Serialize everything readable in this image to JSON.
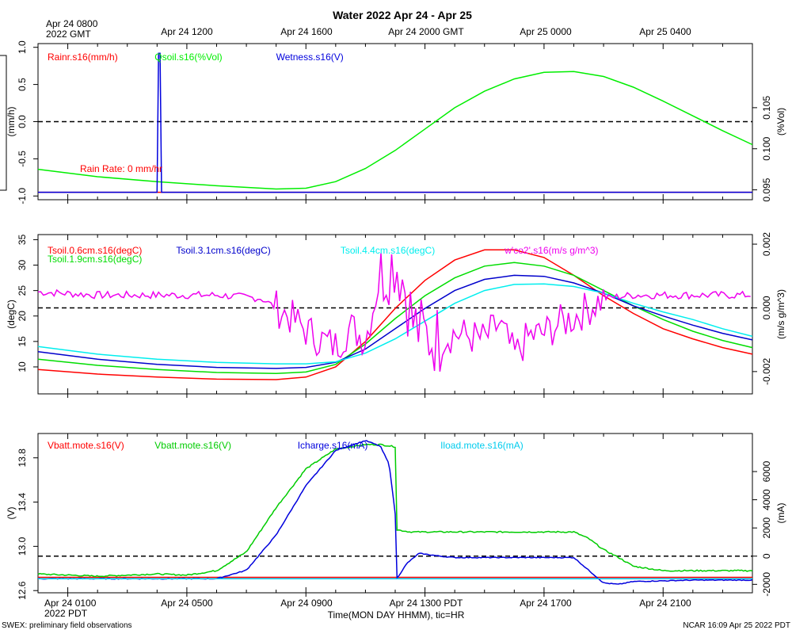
{
  "figure": {
    "title": "Water 2022 Apr 24 - Apr 25",
    "top_ticks": [
      "Apr 24 0800\n2022 GMT",
      "Apr 24 1200",
      "Apr 24 1600",
      "Apr 24 2000 GMT",
      "Apr 25 0000",
      "Apr 25 0400"
    ],
    "bottom_ticks": [
      "Apr 24 0100\n2022 PDT",
      "Apr 24 0500",
      "Apr 24 0900",
      "Apr 24 1300 PDT",
      "Apr 24 1700",
      "Apr 24 2100"
    ],
    "xlabel": "Time(MON DAY HHMM), tic=HR",
    "footer_left": "SWEX: preliminary field observations",
    "footer_right": "NCAR 16:09 Apr 25 2022 PDT"
  },
  "chart_data": [
    {
      "type": "line",
      "panel": "rain-soil-moisture-wetness",
      "x_unit": "hours since Apr 24 0000 PDT",
      "xlim": [
        0,
        24
      ],
      "left_axis": {
        "label": "(mm/h)",
        "ylim": [
          -1.05,
          1.05
        ],
        "ticks": [
          1.0,
          0.5,
          0.0,
          -0.5,
          -1.0
        ],
        "tick_labels": [
          "1.0",
          "0.5",
          "0.0",
          "-0.5",
          "-1.0"
        ]
      },
      "right_axis": {
        "label": "(%Vol)",
        "ylim": [
          0.0938,
          0.1128
        ],
        "ticks": [
          0.105,
          0.1,
          0.095
        ],
        "tick_labels": [
          "0.105",
          "0.100",
          "0.095"
        ]
      },
      "reference_line": {
        "axis": "left",
        "y": 0.0
      },
      "annotation": "Rain Rate: 0 mm/hr",
      "series": [
        {
          "name": "Rainr.s16(mm/h)",
          "axis": "left",
          "color": "#ff0000",
          "x": [
            0,
            24
          ],
          "y": [
            -0.95,
            -0.95
          ]
        },
        {
          "name": "Qsoil.s16(%Vol)",
          "axis": "right",
          "color": "#00ee00",
          "x": [
            0,
            2,
            4,
            6,
            8,
            9,
            10,
            11,
            12,
            13,
            14,
            15,
            16,
            17,
            18,
            19,
            20,
            21,
            22,
            23,
            24
          ],
          "y": [
            0.0975,
            0.0966,
            0.096,
            0.0955,
            0.0951,
            0.0952,
            0.096,
            0.0976,
            0.0998,
            0.1024,
            0.105,
            0.107,
            0.1085,
            0.1093,
            0.1094,
            0.1088,
            0.1075,
            0.1058,
            0.104,
            0.1022,
            0.1005
          ]
        },
        {
          "name": "Wetness.s16(V)",
          "axis": "left",
          "color": "#0000dd",
          "x": [
            0,
            4.0,
            4.05,
            4.1,
            4.15,
            24
          ],
          "y": [
            -0.95,
            -0.95,
            0.92,
            0.92,
            -0.95,
            -0.95
          ]
        }
      ]
    },
    {
      "type": "line",
      "panel": "soil-temperature-co2-flux",
      "x_unit": "hours since Apr 24 0000 PDT",
      "xlim": [
        0,
        24
      ],
      "left_axis": {
        "label": "(degC)",
        "ylim": [
          4.7,
          36
        ],
        "ticks": [
          35,
          30,
          25,
          20,
          15,
          10
        ],
        "tick_labels": [
          "35",
          "30",
          "25",
          "20",
          "15",
          "10"
        ]
      },
      "right_axis": {
        "label": "(m/s g/m^3)",
        "ylim": [
          -0.0027,
          0.0023
        ],
        "ticks": [
          0.002,
          0.0,
          -0.002
        ],
        "tick_labels": [
          "0.002",
          "0.000",
          "-0.002"
        ]
      },
      "reference_line": {
        "axis": "right",
        "y": 0.0
      },
      "series": [
        {
          "name": "Tsoil.0.6cm.s16(degC)",
          "axis": "left",
          "color": "#ff0000",
          "x": [
            0,
            2,
            4,
            6,
            8,
            9,
            10,
            11,
            12,
            13,
            14,
            15,
            16,
            17,
            18,
            19,
            20,
            21,
            22,
            23,
            24
          ],
          "y": [
            9.5,
            8.6,
            8.0,
            7.6,
            7.5,
            8.0,
            10.0,
            15.0,
            21.5,
            27.0,
            31.0,
            33.0,
            33.0,
            31.5,
            28.0,
            24.0,
            20.5,
            17.5,
            15.5,
            13.8,
            12.5
          ]
        },
        {
          "name": "Tsoil.1.9cm.s16(degC)",
          "axis": "left",
          "color": "#00dd00",
          "x": [
            0,
            2,
            4,
            6,
            8,
            9,
            10,
            11,
            12,
            13,
            14,
            15,
            16,
            17,
            18,
            19,
            20,
            21,
            22,
            23,
            24
          ],
          "y": [
            11.5,
            10.3,
            9.5,
            8.9,
            8.7,
            9.0,
            10.5,
            14.5,
            19.5,
            24.0,
            27.5,
            29.8,
            30.5,
            29.8,
            28.0,
            25.0,
            22.0,
            19.3,
            17.0,
            15.2,
            13.8
          ]
        },
        {
          "name": "Tsoil.3.1cm.s16(degC)",
          "axis": "left",
          "color": "#0000cc",
          "x": [
            0,
            2,
            4,
            6,
            8,
            9,
            10,
            11,
            12,
            13,
            14,
            15,
            16,
            17,
            18,
            19,
            20,
            21,
            22,
            23,
            24
          ],
          "y": [
            13.0,
            11.5,
            10.5,
            9.9,
            9.7,
            9.9,
            10.9,
            13.5,
            17.5,
            21.5,
            25.0,
            27.2,
            28.0,
            27.8,
            26.5,
            24.5,
            22.0,
            20.0,
            18.2,
            16.6,
            15.3
          ]
        },
        {
          "name": "Tsoil.4.4cm.s16(degC)",
          "axis": "left",
          "color": "#00eeee",
          "x": [
            0,
            2,
            4,
            6,
            8,
            9,
            10,
            11,
            12,
            13,
            14,
            15,
            16,
            17,
            18,
            19,
            20,
            21,
            22,
            23,
            24
          ],
          "y": [
            14.0,
            12.5,
            11.5,
            10.9,
            10.6,
            10.6,
            11.0,
            12.7,
            15.5,
            19.0,
            22.5,
            25.0,
            26.2,
            26.3,
            25.8,
            24.5,
            22.5,
            20.8,
            19.3,
            17.5,
            16.0
          ]
        },
        {
          "name": "w'co2'.s16(m/s g/m^3)",
          "axis": "right",
          "color": "#ee00ee",
          "noise": true,
          "x": [
            0,
            2,
            4,
            6,
            7.5,
            8.5,
            9,
            9.5,
            10,
            10.5,
            11,
            11.5,
            12,
            12.3,
            12.6,
            13,
            13.5,
            14,
            14.5,
            15,
            15.5,
            16,
            16.5,
            17,
            17.5,
            18,
            18.5,
            19,
            20,
            22,
            24
          ],
          "y": [
            0.0005,
            0.0004,
            0.0004,
            0.0004,
            0.0003,
            -0.0003,
            -0.0007,
            -0.001,
            -0.0012,
            -0.0006,
            -0.001,
            0.001,
            0.0015,
            0.0008,
            -0.0005,
            -0.0009,
            -0.001,
            -0.0008,
            -0.0009,
            -0.001,
            -0.0005,
            -0.0015,
            -0.0009,
            -0.0008,
            -0.0005,
            -0.0003,
            0.0,
            0.0003,
            0.0004,
            0.0004,
            0.0004
          ]
        }
      ]
    },
    {
      "type": "line",
      "panel": "battery-voltage-current",
      "x_unit": "hours since Apr 24 0000 PDT",
      "xlim": [
        0,
        24
      ],
      "left_axis": {
        "label": "(V)",
        "ylim": [
          12.58,
          14.02
        ],
        "ticks": [
          13.8,
          13.4,
          13.0,
          12.6
        ],
        "tick_labels": [
          "13.8",
          "13.4",
          "13.0",
          "12.6"
        ]
      },
      "right_axis": {
        "label": "(mA)",
        "ylim": [
          -2600,
          8700
        ],
        "ticks": [
          6000,
          4000,
          2000,
          0,
          -2000
        ],
        "tick_labels": [
          "6000",
          "4000",
          "2000",
          "0",
          "-2000"
        ]
      },
      "reference_line": {
        "axis": "right",
        "y": 0
      },
      "series": [
        {
          "name": "Vbatt.mote.s16(V)",
          "axis": "left",
          "color": "#ff0000",
          "x": [
            0,
            24
          ],
          "y": [
            12.72,
            12.72
          ]
        },
        {
          "name": "Vbatt.mote.s16(V)",
          "axis": "left",
          "color": "#00cc00",
          "x": [
            0,
            1,
            2,
            3,
            4,
            5,
            6,
            7,
            8,
            9,
            10,
            11,
            11.5,
            12,
            12.05,
            12.5,
            13,
            14,
            15,
            16,
            17,
            18,
            18.5,
            19,
            19.5,
            20,
            21,
            22,
            23,
            24
          ],
          "y": [
            12.75,
            12.74,
            12.73,
            12.74,
            12.75,
            12.74,
            12.78,
            12.95,
            13.35,
            13.7,
            13.88,
            13.92,
            13.92,
            13.9,
            13.15,
            13.13,
            13.13,
            13.13,
            13.13,
            13.13,
            13.13,
            13.13,
            13.07,
            12.97,
            12.9,
            12.82,
            12.78,
            12.78,
            12.78,
            12.78
          ]
        },
        {
          "name": "Icharge.s16(mA)",
          "axis": "right",
          "color": "#0000dd",
          "x": [
            0,
            2,
            4,
            6,
            7,
            8,
            9,
            10,
            11,
            11.5,
            11.8,
            12.0,
            12.05,
            12.4,
            12.8,
            13.5,
            14,
            16,
            17,
            18,
            18.5,
            19,
            19.5,
            20,
            22,
            24
          ],
          "y": [
            -1600,
            -1600,
            -1600,
            -1600,
            -1000,
            1500,
            5000,
            7500,
            8200,
            7800,
            6500,
            3000,
            -1600,
            -500,
            200,
            0,
            -100,
            -100,
            -100,
            -100,
            -1000,
            -1900,
            -2000,
            -1800,
            -1700,
            -1700
          ]
        },
        {
          "name": "Iload.mote.s16(mA)",
          "axis": "right",
          "color": "#00ccee",
          "x": [
            0,
            24
          ],
          "y": [
            -1600,
            -1600
          ]
        }
      ]
    }
  ]
}
